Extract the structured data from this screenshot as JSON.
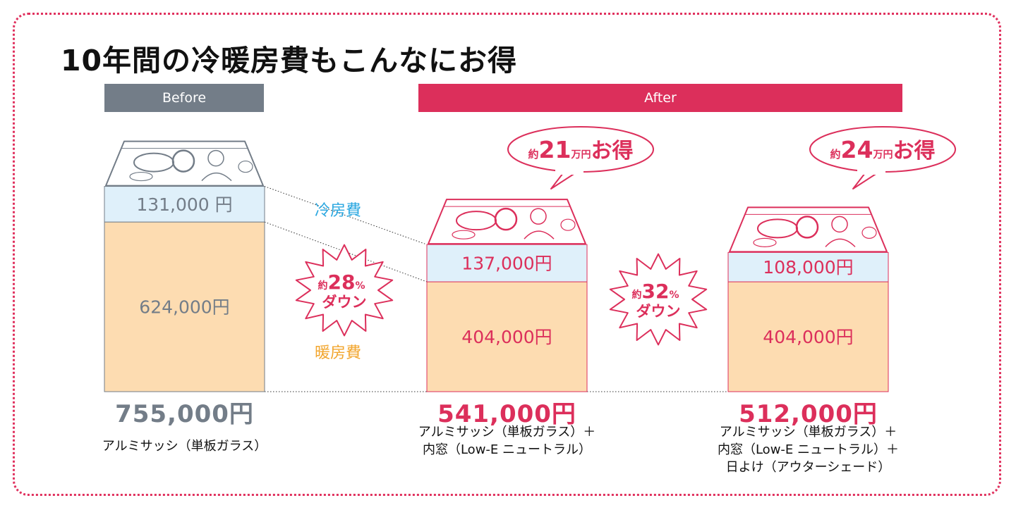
{
  "title": "10年間の冷暖房費もこんなにお得",
  "bands": {
    "before": "Before",
    "after": "After"
  },
  "colors": {
    "brand": "#dc2f5b",
    "gray": "#737d88",
    "cooling_fill": "#dff0fa",
    "heating_fill": "#fddcb1",
    "cooling_text": "#2aa7e0",
    "heating_text": "#f2a62e"
  },
  "legend": {
    "cooling": "冷房費",
    "heating": "暖房費"
  },
  "icons": [
    "banknote-1000-yen-icon",
    "speech-bubble-icon",
    "starburst-icon"
  ],
  "chart_data": {
    "type": "bar",
    "stacked": true,
    "unit": "円",
    "categories": [
      "Before",
      "After 1",
      "After 2"
    ],
    "series": [
      {
        "name": "暖房費",
        "values": [
          624000,
          404000,
          404000
        ],
        "labels": [
          "624,000円",
          "404,000円",
          "404,000円"
        ]
      },
      {
        "name": "冷房費",
        "values": [
          131000,
          137000,
          108000
        ],
        "labels": [
          "131,000 円",
          "137,000円",
          "108,000円"
        ]
      }
    ],
    "totals": [
      755000,
      541000,
      512000
    ],
    "total_labels": [
      "755,000円",
      "541,000円",
      "512,000円"
    ],
    "captions": [
      [
        "アルミサッシ（単板ガラス）"
      ],
      [
        "アルミサッシ（単板ガラス）＋",
        "内窓（Low-E ニュートラル）"
      ],
      [
        "アルミサッシ（単板ガラス）＋",
        "内窓（Low-E ニュートラル）＋",
        "日よけ（アウターシェード）"
      ]
    ],
    "savings": [
      {
        "prefix": "約",
        "number": "21",
        "unit": "万円",
        "suffix": "お得"
      },
      {
        "prefix": "約",
        "number": "24",
        "unit": "万円",
        "suffix": "お得"
      }
    ],
    "reductions": [
      {
        "prefix": "約",
        "number": "28",
        "unit": "%",
        "label": "ダウン"
      },
      {
        "prefix": "約",
        "number": "32",
        "unit": "%",
        "label": "ダウン"
      }
    ]
  }
}
